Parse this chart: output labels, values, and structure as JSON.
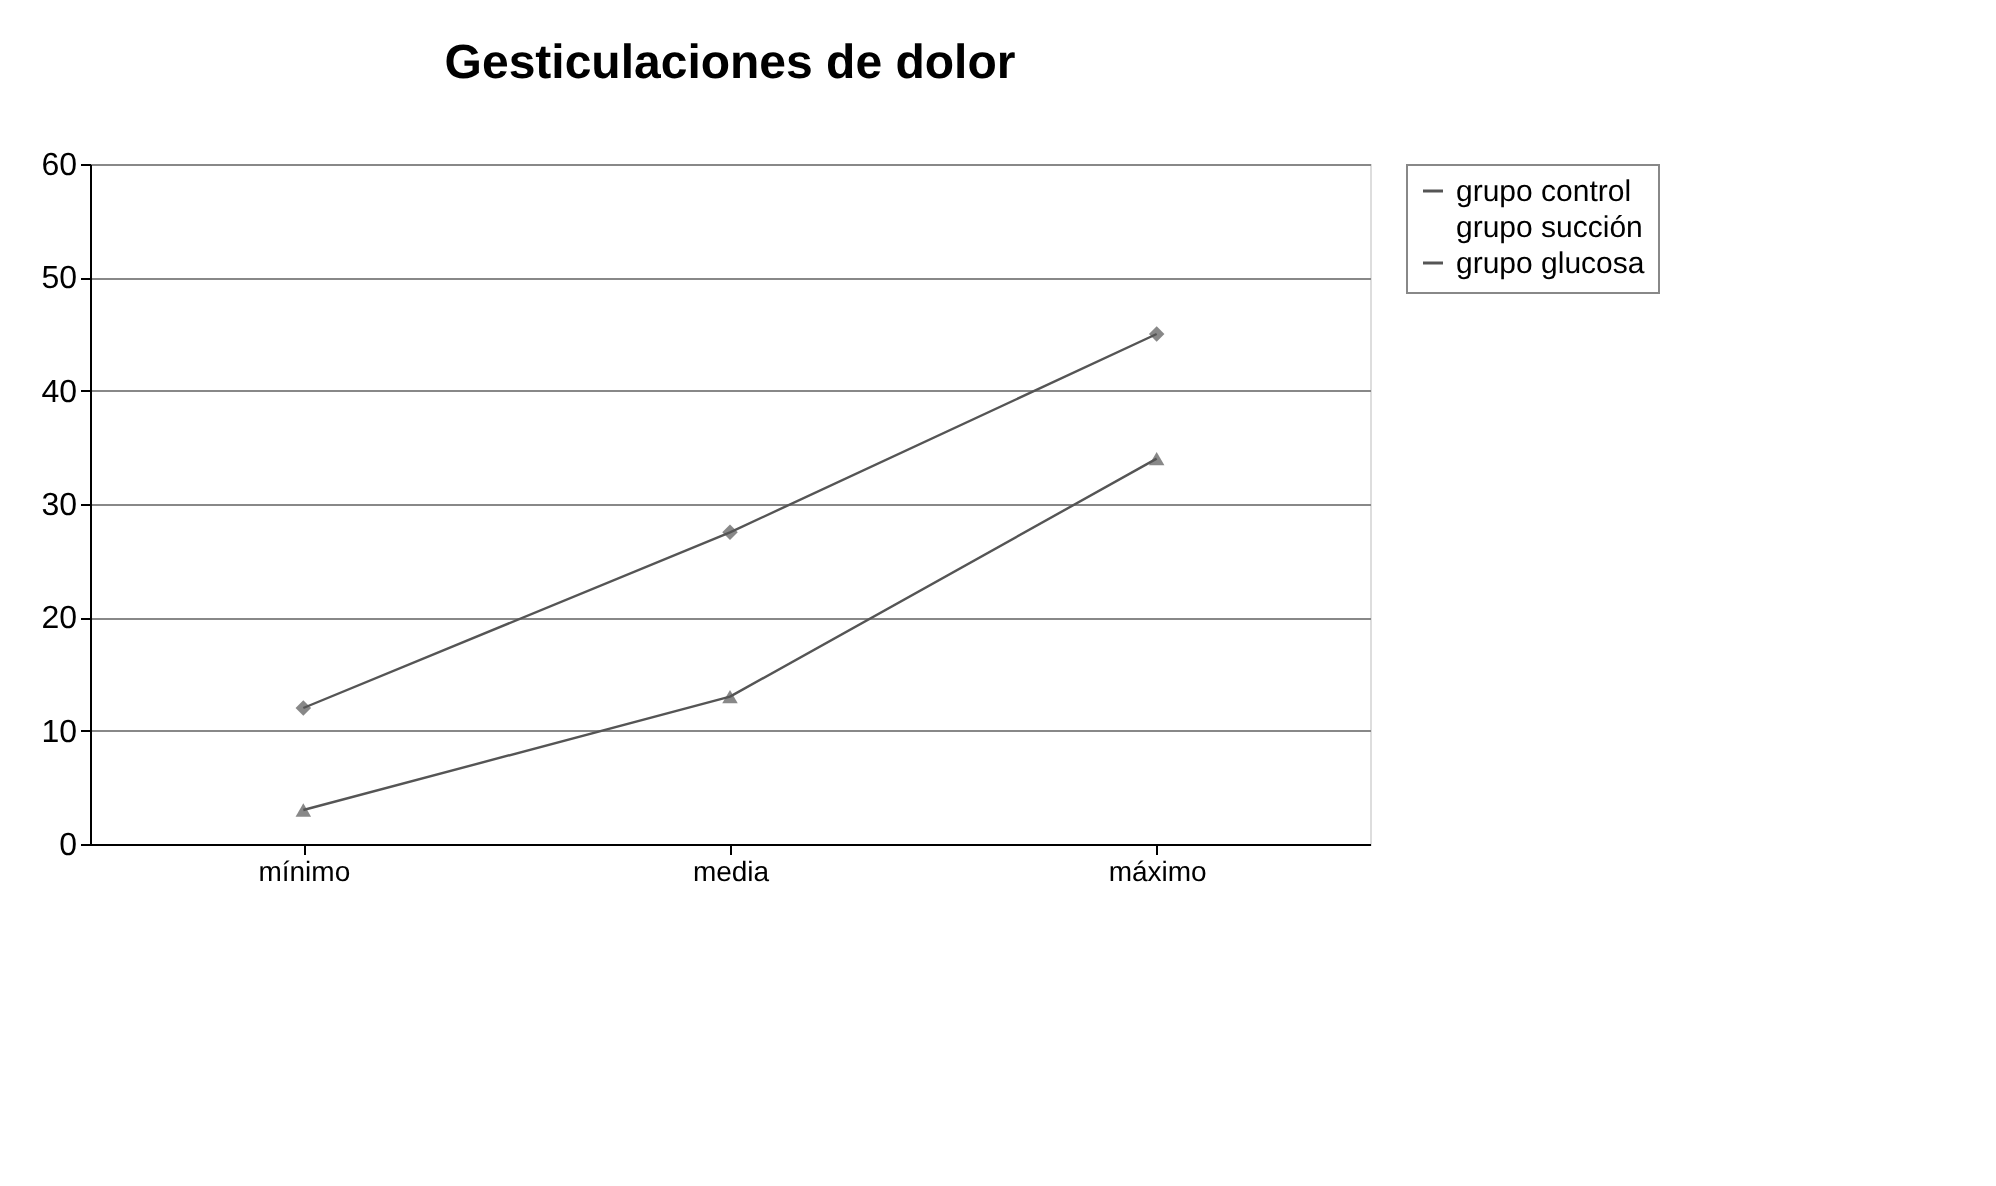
{
  "chart_data": {
    "type": "line",
    "title": "Gesticulaciones de dolor",
    "categories": [
      "mínimo",
      "media",
      "máximo"
    ],
    "series": [
      {
        "name": "grupo control",
        "color": "#555555",
        "marker": "diamond",
        "values": [
          12,
          27.5,
          45
        ]
      },
      {
        "name": "grupo succión",
        "marker": "none",
        "values": [
          null,
          null,
          null
        ]
      },
      {
        "name": "grupo glucosa",
        "color": "#555555",
        "marker": "triangle",
        "values": [
          3,
          13,
          34
        ]
      }
    ],
    "ylim": [
      0,
      60
    ],
    "yticks": [
      0,
      10,
      20,
      30,
      40,
      50,
      60
    ],
    "grid": "y",
    "legend": "right",
    "line_style": "solid"
  }
}
